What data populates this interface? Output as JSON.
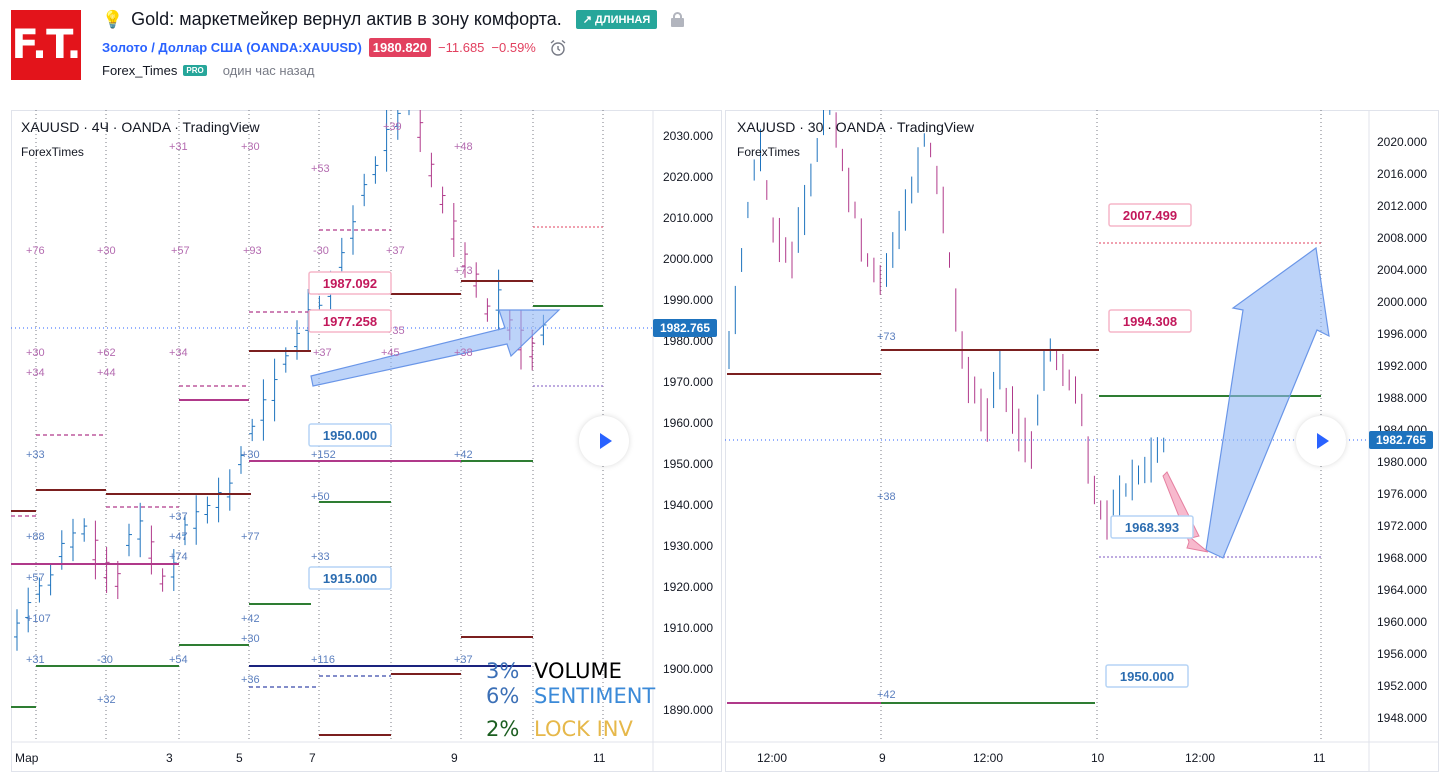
{
  "header": {
    "logo_text": "F.T.",
    "title": "Gold: маркетмейкер вернул актив в зону комфорта.",
    "direction_badge": "↗ ДЛИННАЯ",
    "symbol_link": "Золото / Доллар США (OANDA:XAUUSD)",
    "price": "1980.820",
    "change": "−11.685",
    "change_pct": "−0.59%",
    "author": "Forex_Times",
    "author_badge": "PRO",
    "time_ago": "один час назад",
    "icons": [
      "bulb-icon",
      "lock-icon",
      "alarm-clock-icon",
      "play-icon"
    ]
  },
  "colors": {
    "brand_red": "#e3141b",
    "long_green": "#26a69a",
    "negative": "#e2405f",
    "link_blue": "#2962ff",
    "price_label_bg": "#1e73be"
  },
  "left_chart": {
    "legend": "XAUUSD · 4Ч · OANDA · TradingView",
    "watermark": "ForexTimes",
    "price_axis": [
      "2030.000",
      "2020.000",
      "2010.000",
      "2000.000",
      "1990.000",
      "1980.000",
      "1970.000",
      "1960.000",
      "1950.000",
      "1940.000",
      "1930.000",
      "1920.000",
      "1910.000",
      "1900.000",
      "1890.000"
    ],
    "current_price_label": "1982.765",
    "time_axis": [
      "Мар",
      "3",
      "5",
      "7",
      "9",
      "11"
    ],
    "callouts": [
      "1987.092",
      "1977.258",
      "1950.000",
      "1915.000"
    ],
    "small_labels": [
      "+31",
      "+30",
      "+53",
      "+39",
      "+48",
      "+76",
      "+30",
      "+57",
      "+93",
      "-30",
      "+37",
      "+73",
      "+30",
      "+62",
      "+34",
      "+37",
      "+35",
      "+45",
      "+38",
      "+34",
      "+44",
      "+33",
      "+30",
      "+152",
      "+42",
      "+50",
      "+37",
      "+88",
      "+47",
      "+74",
      "+77",
      "+57",
      "+33",
      "+107",
      "+42",
      "+30",
      "+116",
      "+37",
      "+31",
      "-30",
      "+54",
      "+36",
      "+32"
    ],
    "legend_rows": [
      {
        "pct": "3%",
        "label": "VOLUME"
      },
      {
        "pct": "6%",
        "label": "SENTIMENT"
      },
      {
        "pct": "2%",
        "label": "LOCK INV"
      }
    ]
  },
  "right_chart": {
    "legend": "XAUUSD · 30 · OANDA · TradingView",
    "watermark": "ForexTimes",
    "price_axis": [
      "2020.000",
      "2016.000",
      "2012.000",
      "2008.000",
      "2004.000",
      "2000.000",
      "1996.000",
      "1992.000",
      "1988.000",
      "1984.000",
      "1980.000",
      "1976.000",
      "1972.000",
      "1968.000",
      "1964.000",
      "1960.000",
      "1956.000",
      "1952.000",
      "1948.000"
    ],
    "current_price_label": "1982.765",
    "time_axis": [
      "12:00",
      "9",
      "12:00",
      "10",
      "12:00",
      "11"
    ],
    "callouts": [
      "2007.499",
      "1994.308",
      "1968.393",
      "1950.000"
    ],
    "small_labels": [
      "+73",
      "+38",
      "+42"
    ]
  }
}
